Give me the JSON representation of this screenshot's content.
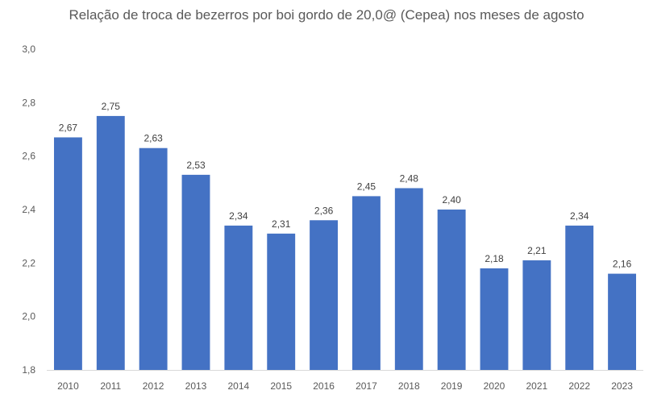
{
  "chart_data": {
    "type": "bar",
    "title": "Relação de troca de bezerros por boi gordo de 20,0@ (Cepea) nos meses de agosto",
    "xlabel": "",
    "ylabel": "",
    "categories": [
      "2010",
      "2011",
      "2012",
      "2013",
      "2014",
      "2015",
      "2016",
      "2017",
      "2018",
      "2019",
      "2020",
      "2021",
      "2022",
      "2023"
    ],
    "values": [
      2.67,
      2.75,
      2.63,
      2.53,
      2.34,
      2.31,
      2.36,
      2.45,
      2.48,
      2.4,
      2.18,
      2.21,
      2.34,
      2.16
    ],
    "data_labels": [
      "2,67",
      "2,75",
      "2,63",
      "2,53",
      "2,34",
      "2,31",
      "2,36",
      "2,45",
      "2,48",
      "2,40",
      "2,18",
      "2,21",
      "2,34",
      "2,16"
    ],
    "ylim": [
      1.8,
      3.0
    ],
    "yticks": [
      1.8,
      2.0,
      2.2,
      2.4,
      2.6,
      2.8,
      3.0
    ],
    "ytick_labels": [
      "1,8",
      "2,0",
      "2,2",
      "2,4",
      "2,6",
      "2,8",
      "3,0"
    ],
    "grid": false,
    "legend": "none",
    "bar_color": "#4472C4"
  }
}
